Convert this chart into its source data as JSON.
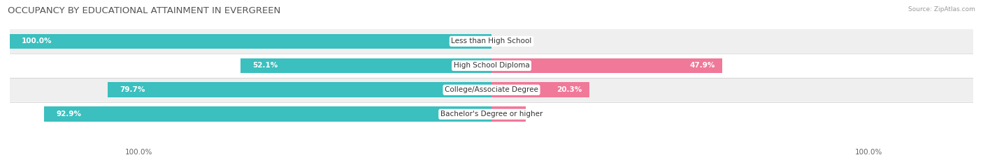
{
  "title": "OCCUPANCY BY EDUCATIONAL ATTAINMENT IN EVERGREEN",
  "source": "Source: ZipAtlas.com",
  "categories": [
    "Less than High School",
    "High School Diploma",
    "College/Associate Degree",
    "Bachelor's Degree or higher"
  ],
  "owner_pct": [
    100.0,
    52.1,
    79.7,
    92.9
  ],
  "renter_pct": [
    0.0,
    47.9,
    20.3,
    7.1
  ],
  "owner_color": "#3bbfbf",
  "renter_color": "#f07898",
  "row_bg_colors": [
    "#efefef",
    "#ffffff",
    "#efefef",
    "#ffffff"
  ],
  "left_label": "100.0%",
  "right_label": "100.0%",
  "title_fontsize": 9.5,
  "label_fontsize": 7.5,
  "tick_fontsize": 7.5,
  "legend_fontsize": 7.5,
  "bar_height": 0.62,
  "owner_label_color": "white",
  "renter_label_color": "white",
  "outside_label_color": "#555555"
}
